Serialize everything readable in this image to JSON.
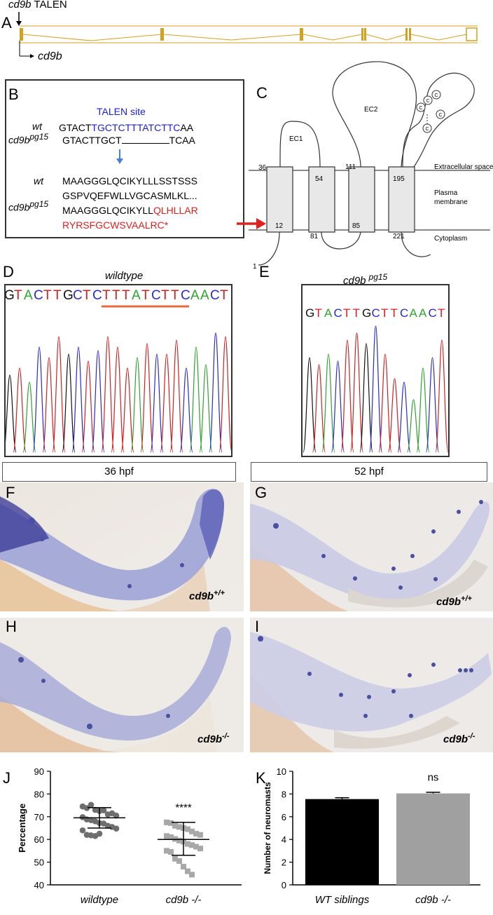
{
  "panel_letters": {
    "A": "A",
    "B": "B",
    "C": "C",
    "D": "D",
    "E": "E",
    "F": "F",
    "G": "G",
    "H": "H",
    "I": "I",
    "J": "J",
    "K": "K"
  },
  "panelA": {
    "talen_gene": "cd9b",
    "talen_suffix": " TALEN",
    "gene_label": "cd9b",
    "color": "#d4a021"
  },
  "panelB": {
    "talen_site": "TALEN site",
    "wt": "wt",
    "mut_gene": "cd9b",
    "mut_sup": "pg15",
    "wt_seq_pre": "GTACT",
    "wt_seq_blue": "TGCTCTTTATCTTC",
    "wt_seq_post": "AA",
    "mut_seq_pre": "GTACTTGCT",
    "mut_seq_post": "TCAA",
    "wt_prot_1": "MAAGGGLQCIKYLLLSSTSSS",
    "wt_prot_2": "GSPVQEFWLLVGCASMLKL...",
    "mut_prot_1_black": "MAAGGGLQCIKYLL",
    "mut_prot_1_red": "QLHLLAR",
    "mut_prot_2_red": "RYRSFGCWSVAALRC*"
  },
  "panelC": {
    "ec1": "EC1",
    "ec2": "EC2",
    "extracellular": "Extracellular space",
    "plasma": "Plasma",
    "membrane": "membrane",
    "cytoplasm": "Cytoplasm",
    "n36": "36",
    "n54": "54",
    "n111": "111",
    "n195": "195",
    "n12": "12",
    "n81": "81",
    "n85": "85",
    "n221": "221",
    "n1": "1",
    "cys": "C"
  },
  "panelD": {
    "title": "wildtype",
    "seq": "GTACTTGCTCTTTATCTTCAACT"
  },
  "panelE": {
    "title_gene": "cd9b",
    "title_sup": "pg15",
    "seq": "GTACTTGCTTCAACT"
  },
  "stage_headers": {
    "left": "36 hpf",
    "right": "52 hpf"
  },
  "photo_labels": {
    "F": {
      "gene": "cd9b",
      "sup": "+/+"
    },
    "G": {
      "gene": "cd9b",
      "sup": "+/+"
    },
    "H": {
      "gene": "cd9b",
      "sup": "-/-"
    },
    "I": {
      "gene": "cd9b",
      "sup": "-/-"
    }
  },
  "chart_data": [
    {
      "type": "scatter",
      "ylabel": "Percentage",
      "ylim": [
        40,
        90
      ],
      "yticks": [
        "40",
        "50",
        "60",
        "70",
        "80",
        "90"
      ],
      "categories": [
        "wildtype",
        "cd9b -/-"
      ],
      "significance": "****",
      "series": [
        {
          "values": [
            74.5,
            73.8,
            75.2,
            73.0,
            72.5,
            72.8,
            71.0,
            71.5,
            70.5,
            69.8,
            68.8,
            68.5,
            68.0,
            67.2,
            67.0,
            66.0,
            65.5,
            64.8,
            64.0,
            62.0,
            61.8,
            61.5,
            62.5
          ],
          "mean": 69.5,
          "sd_upper": 74.0,
          "sd_lower": 65.0,
          "color": "#6e6e6e"
        },
        {
          "values": [
            67.5,
            67.2,
            66.0,
            65.5,
            65.0,
            64.5,
            63.5,
            62.5,
            62.0,
            61.5,
            61.0,
            60.2,
            59.5,
            59.0,
            58.0,
            57.5,
            56.8,
            56.0,
            55.0,
            54.5,
            51.5,
            50.5,
            48.0,
            46.0,
            44.5
          ],
          "mean": 60.0,
          "sd_upper": 67.5,
          "sd_lower": 53.0,
          "color": "#a8a8a8"
        }
      ]
    },
    {
      "type": "bar",
      "ylabel": "Number of neuromasts",
      "ylim": [
        0,
        10
      ],
      "yticks": [
        "0",
        "2",
        "4",
        "6",
        "8",
        "10"
      ],
      "categories": [
        "WT siblings",
        "cd9b -/-"
      ],
      "values": [
        7.55,
        8.05
      ],
      "errors": [
        0.12,
        0.1
      ],
      "colors": [
        "#000000",
        "#a0a0a0"
      ],
      "significance": "ns"
    }
  ]
}
